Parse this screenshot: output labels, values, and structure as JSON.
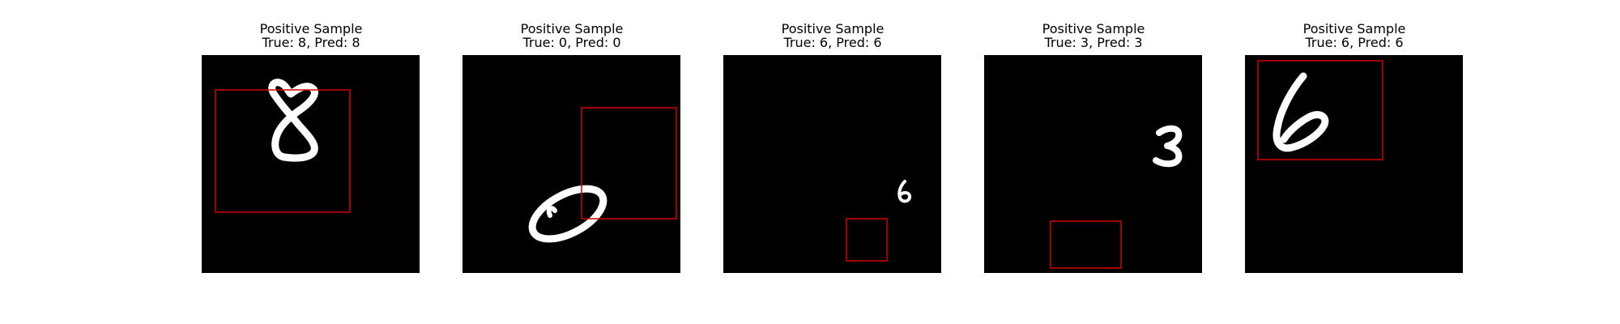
{
  "panels": [
    {
      "title": "Positive Sample",
      "subtitle": "True: 8, Pred: 8",
      "true_label": 8,
      "pred_label": 8
    },
    {
      "title": "Positive Sample",
      "subtitle": "True: 0, Pred: 0",
      "true_label": 0,
      "pred_label": 0
    },
    {
      "title": "Positive Sample",
      "subtitle": "True: 6, Pred: 6",
      "true_label": 6,
      "pred_label": 6
    },
    {
      "title": "Positive Sample",
      "subtitle": "True: 3, Pred: 3",
      "true_label": 3,
      "pred_label": 3
    },
    {
      "title": "Positive Sample",
      "subtitle": "True: 6, Pred: 6",
      "true_label": 6,
      "pred_label": 6
    }
  ],
  "colors": {
    "background": "#000000",
    "digit": "#ffffff",
    "bounding_box": "#d40000",
    "text": "#000000"
  }
}
